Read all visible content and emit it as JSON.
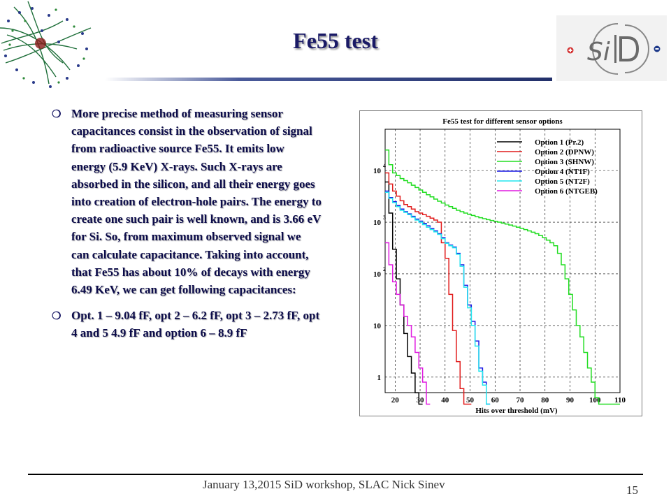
{
  "slide": {
    "title": "Fe55 test",
    "logo_text": "SiD",
    "bullets": [
      "More precise method of measuring sensor capacitances consist in the observation of signal from radioactive source Fe55. It emits low energy (5.9 KeV) X-rays. Such X-rays are absorbed in the silicon, and all their energy goes into creation of electron-hole pairs. The energy to create one such pair is well known, and is 3.66 eV for Si. So, from maximum observed signal we can calculate capacitance. Taking into account, that Fe55 has about 10% of decays with energy 6.49 KeV, we can get following capacitances:",
      "Opt. 1 – 9.04 fF, opt 2 – 6.2 fF, opt 3 – 2.73 fF, opt 4 and 5 4.9 fF and option 6 – 8.9 fF"
    ],
    "bullet_icon": "circle-bullet-icon",
    "footer_text": "January 13,2015  SiD workshop, SLAC          Nick Sinev",
    "slide_number": "15",
    "colors": {
      "title": "#1a1a66",
      "logo_red": "#d32f2f",
      "logo_blue": "#1e3a8a"
    }
  },
  "chart_data": {
    "type": "line",
    "title": "Fe55 test for different sensor options",
    "xlabel": "Hits over threshold (mV)",
    "ylabel": "",
    "x_ticks": [
      "20",
      "30",
      "40",
      "50",
      "60",
      "70",
      "80",
      "90",
      "100",
      "110"
    ],
    "y_ticks": [
      {
        "base": "1",
        "exp": "",
        "value": 1
      },
      {
        "base": "10",
        "exp": "",
        "value": 10
      },
      {
        "base": "10",
        "exp": "2",
        "value": 100
      },
      {
        "base": "10",
        "exp": "3",
        "value": 1000
      },
      {
        "base": "10",
        "exp": "4",
        "value": 10000
      }
    ],
    "xlim": [
      16,
      110
    ],
    "ylim_log10": [
      -0.3,
      4.8
    ],
    "log_y": true,
    "grid": true,
    "legend_placement": "top-right",
    "step_width": 1.5,
    "series": [
      {
        "name": "Option 1 (Pr.2)",
        "color": "#000000",
        "x": [
          16,
          17.5,
          19,
          20.5,
          22,
          23.5,
          25,
          26.5,
          28,
          29.5
        ],
        "y": [
          6000,
          1500,
          300,
          80,
          25,
          7,
          2.5,
          1.2,
          0.5,
          0.3
        ]
      },
      {
        "name": "Option 2 (DPNW)",
        "color": "#e11b1b",
        "x": [
          16,
          17.5,
          19,
          20.5,
          22,
          23.5,
          25,
          26.5,
          28,
          29.5,
          31,
          32.5,
          34,
          35.5,
          37,
          38.5,
          40,
          41.5,
          43,
          44.5,
          46,
          47.5,
          49
        ],
        "y": [
          9000,
          5500,
          4000,
          3200,
          2600,
          2200,
          2000,
          1800,
          1600,
          1500,
          1400,
          1300,
          1200,
          1100,
          1000,
          400,
          200,
          40,
          8,
          2,
          0.6,
          0.3,
          0.3
        ]
      },
      {
        "name": "Option 3 (SHNW)",
        "color": "#22dd22",
        "x": [
          16,
          17.5,
          19,
          20.5,
          22,
          23.5,
          25,
          26.5,
          28,
          29.5,
          31,
          32.5,
          34,
          35.5,
          37,
          38.5,
          40,
          41.5,
          43,
          44.5,
          46,
          47.5,
          49,
          50.5,
          52,
          53.5,
          55,
          56.5,
          58,
          59.5,
          61,
          62.5,
          64,
          65.5,
          67,
          68.5,
          70,
          71.5,
          73,
          74.5,
          76,
          77.5,
          79,
          80.5,
          82,
          83.5,
          85,
          86.5,
          88,
          89.5,
          91,
          92.5,
          94,
          95.5,
          97,
          98.5,
          100,
          101.5,
          103,
          104.5,
          106,
          107.5,
          109
        ],
        "y": [
          25000,
          13000,
          9000,
          8000,
          7000,
          6400,
          5800,
          5200,
          4700,
          4200,
          3800,
          3400,
          3100,
          2800,
          2550,
          2350,
          2150,
          2000,
          1850,
          1700,
          1600,
          1500,
          1420,
          1350,
          1280,
          1220,
          1170,
          1120,
          1080,
          1040,
          1000,
          960,
          920,
          880,
          840,
          800,
          760,
          720,
          680,
          640,
          600,
          550,
          500,
          450,
          400,
          350,
          250,
          150,
          80,
          40,
          20,
          10,
          6,
          3,
          1.5,
          0.8,
          0.4,
          0.3,
          0.3,
          0.3,
          0.3,
          0.3,
          0.3
        ]
      },
      {
        "name": "Option 4 (NT1F)",
        "color": "#1a1ae6",
        "x": [
          16,
          17.5,
          19,
          20.5,
          22,
          23.5,
          25,
          26.5,
          28,
          29.5,
          31,
          32.5,
          34,
          35.5,
          37,
          38.5,
          40,
          41.5,
          43,
          44.5,
          46,
          47.5,
          49,
          50.5,
          52,
          53.5,
          55,
          56.5
        ],
        "y": [
          4000,
          3000,
          2500,
          2100,
          1800,
          1600,
          1450,
          1300,
          1150,
          1050,
          950,
          850,
          750,
          680,
          600,
          500,
          400,
          360,
          330,
          250,
          150,
          60,
          25,
          12,
          5,
          1.5,
          0.8,
          0.3
        ]
      },
      {
        "name": "Option 5 (NT2F)",
        "color": "#22e6ee",
        "x": [
          16,
          17.5,
          19,
          20.5,
          22,
          23.5,
          25,
          26.5,
          28,
          29.5,
          31,
          32.5,
          34,
          35.5,
          37,
          38.5,
          40,
          41.5,
          43,
          44.5,
          46,
          47.5,
          49,
          50.5,
          52,
          53.5,
          55,
          56.5
        ],
        "y": [
          3800,
          2900,
          2400,
          2000,
          1700,
          1550,
          1400,
          1250,
          1100,
          1000,
          900,
          800,
          720,
          650,
          580,
          480,
          390,
          350,
          320,
          240,
          140,
          55,
          22,
          10,
          4,
          1.3,
          0.7,
          0.3
        ]
      },
      {
        "name": "Option 6 (NTGEB)",
        "color": "#e01ae0",
        "x": [
          16,
          17.5,
          19,
          20.5,
          22,
          23.5,
          25,
          26.5,
          28,
          29.5,
          31,
          32.5
        ],
        "y": [
          400,
          150,
          70,
          40,
          25,
          15,
          10,
          6,
          3,
          1.5,
          0.8,
          0.3
        ]
      }
    ]
  }
}
